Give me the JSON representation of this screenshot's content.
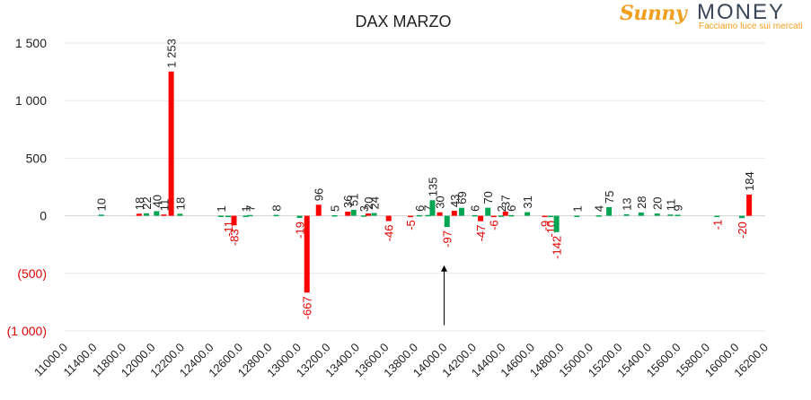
{
  "logo": {
    "brand_part1": "Sunny",
    "brand_part2": "MONEY",
    "tagline": "Facciamo luce sui mercati"
  },
  "colors": {
    "positive": "#00a651",
    "negative": "#ff0000",
    "grid": "#e8e8e8",
    "text": "#222222",
    "negative_label": "#e00000"
  },
  "chart_data": {
    "type": "bar",
    "title": "DAX MARZO",
    "xlabel": "",
    "ylabel": "",
    "ylim": [
      -1000,
      1500
    ],
    "yticks": [
      {
        "value": 1500,
        "label": "1 500"
      },
      {
        "value": 1000,
        "label": "1 000"
      },
      {
        "value": 500,
        "label": "500"
      },
      {
        "value": 0,
        "label": "0"
      },
      {
        "value": -500,
        "label": "(500)"
      },
      {
        "value": -1000,
        "label": "(1 000)"
      }
    ],
    "xlim": [
      11000,
      16200
    ],
    "xticks": [
      "11000.0",
      "11400.0",
      "11800.0",
      "12000.0",
      "12200.0",
      "12400.0",
      "12600.0",
      "12800.0",
      "13000.0",
      "13200.0",
      "13400.0",
      "13600.0",
      "13800.0",
      "14000.0",
      "14200.0",
      "14400.0",
      "14600.0",
      "14800.0",
      "15000.0",
      "15200.0",
      "15400.0",
      "15600.0",
      "15800.0",
      "16000.0",
      "16200.0"
    ],
    "grid": true,
    "annotations": [
      {
        "type": "arrow",
        "category_index": 13,
        "from_value": -950,
        "to_value": -430
      }
    ],
    "bars": [
      {
        "category_index": 1.25,
        "value": 10,
        "label": "10",
        "series": "put"
      },
      {
        "category_index": 2.55,
        "value": 18,
        "label": "18",
        "series": "call"
      },
      {
        "category_index": 2.8,
        "value": 22,
        "label": "22",
        "series": "put"
      },
      {
        "category_index": 3.15,
        "value": 40,
        "label": "40",
        "series": "put"
      },
      {
        "category_index": 3.4,
        "value": 11,
        "label": "11",
        "series": "call"
      },
      {
        "category_index": 3.65,
        "value": 1253,
        "label": "1 253",
        "series": "call"
      },
      {
        "category_index": 3.95,
        "value": 18,
        "label": "18",
        "series": "put"
      },
      {
        "category_index": 5.35,
        "value": 1,
        "label": "1",
        "series": "put"
      },
      {
        "category_index": 5.6,
        "value": -11,
        "label": "-11",
        "series": "put"
      },
      {
        "category_index": 5.8,
        "value": -83,
        "label": "-83",
        "series": "call"
      },
      {
        "category_index": 6.2,
        "value": 1,
        "label": "1",
        "series": "put"
      },
      {
        "category_index": 6.35,
        "value": 7,
        "label": "7",
        "series": "put"
      },
      {
        "category_index": 7.25,
        "value": 8,
        "label": "8",
        "series": "put"
      },
      {
        "category_index": 8.05,
        "value": -19,
        "label": "-19",
        "series": "put"
      },
      {
        "category_index": 8.3,
        "value": -667,
        "label": "-667",
        "series": "call"
      },
      {
        "category_index": 8.7,
        "value": 96,
        "label": "96",
        "series": "call"
      },
      {
        "category_index": 9.25,
        "value": 5,
        "label": "5",
        "series": "put"
      },
      {
        "category_index": 9.7,
        "value": 36,
        "label": "36",
        "series": "call"
      },
      {
        "category_index": 9.9,
        "value": 51,
        "label": "51",
        "series": "put"
      },
      {
        "category_index": 10.25,
        "value": 3,
        "label": "3",
        "series": "put"
      },
      {
        "category_index": 10.4,
        "value": 20,
        "label": "20",
        "series": "call"
      },
      {
        "category_index": 10.6,
        "value": 24,
        "label": "24",
        "series": "put"
      },
      {
        "category_index": 11.1,
        "value": -46,
        "label": "-46",
        "series": "call"
      },
      {
        "category_index": 11.85,
        "value": -5,
        "label": "-5",
        "series": "call"
      },
      {
        "category_index": 12.15,
        "value": 6,
        "label": "6",
        "series": "put"
      },
      {
        "category_index": 12.45,
        "value": 7,
        "label": "7",
        "series": "put"
      },
      {
        "category_index": 12.6,
        "value": 135,
        "label": "135",
        "series": "put"
      },
      {
        "category_index": 12.85,
        "value": 30,
        "label": "30",
        "series": "call"
      },
      {
        "category_index": 13.1,
        "value": -97,
        "label": "-97",
        "series": "put"
      },
      {
        "category_index": 13.35,
        "value": 43,
        "label": "43",
        "series": "call"
      },
      {
        "category_index": 13.6,
        "value": 69,
        "label": "69",
        "series": "put"
      },
      {
        "category_index": 14.05,
        "value": 6,
        "label": "6",
        "series": "put"
      },
      {
        "category_index": 14.25,
        "value": -47,
        "label": "-47",
        "series": "call"
      },
      {
        "category_index": 14.5,
        "value": 70,
        "label": "70",
        "series": "put"
      },
      {
        "category_index": 14.7,
        "value": -6,
        "label": "-6",
        "series": "call"
      },
      {
        "category_index": 14.95,
        "value": 2,
        "label": "2",
        "series": "put"
      },
      {
        "category_index": 15.1,
        "value": 37,
        "label": "37",
        "series": "call"
      },
      {
        "category_index": 15.3,
        "value": 6,
        "label": "6",
        "series": "put"
      },
      {
        "category_index": 15.85,
        "value": 31,
        "label": "31",
        "series": "put"
      },
      {
        "category_index": 16.45,
        "value": -9,
        "label": "-9",
        "series": "call"
      },
      {
        "category_index": 16.65,
        "value": -10,
        "label": "-10",
        "series": "put"
      },
      {
        "category_index": 16.85,
        "value": -142,
        "label": "-142",
        "series": "put"
      },
      {
        "category_index": 17.55,
        "value": 1,
        "label": "1",
        "series": "put"
      },
      {
        "category_index": 18.3,
        "value": 4,
        "label": "4",
        "series": "put"
      },
      {
        "category_index": 18.65,
        "value": 75,
        "label": "75",
        "series": "put"
      },
      {
        "category_index": 19.25,
        "value": 13,
        "label": "13",
        "series": "put"
      },
      {
        "category_index": 19.75,
        "value": 28,
        "label": "28",
        "series": "put"
      },
      {
        "category_index": 20.3,
        "value": 20,
        "label": "20",
        "series": "put"
      },
      {
        "category_index": 20.75,
        "value": 11,
        "label": "11",
        "series": "put"
      },
      {
        "category_index": 21.0,
        "value": 9,
        "label": "9",
        "series": "put"
      },
      {
        "category_index": 22.35,
        "value": -1,
        "label": "-1",
        "series": "put"
      },
      {
        "category_index": 23.2,
        "value": -20,
        "label": "-20",
        "series": "put"
      },
      {
        "category_index": 23.45,
        "value": 184,
        "label": "184",
        "series": "call"
      }
    ]
  }
}
